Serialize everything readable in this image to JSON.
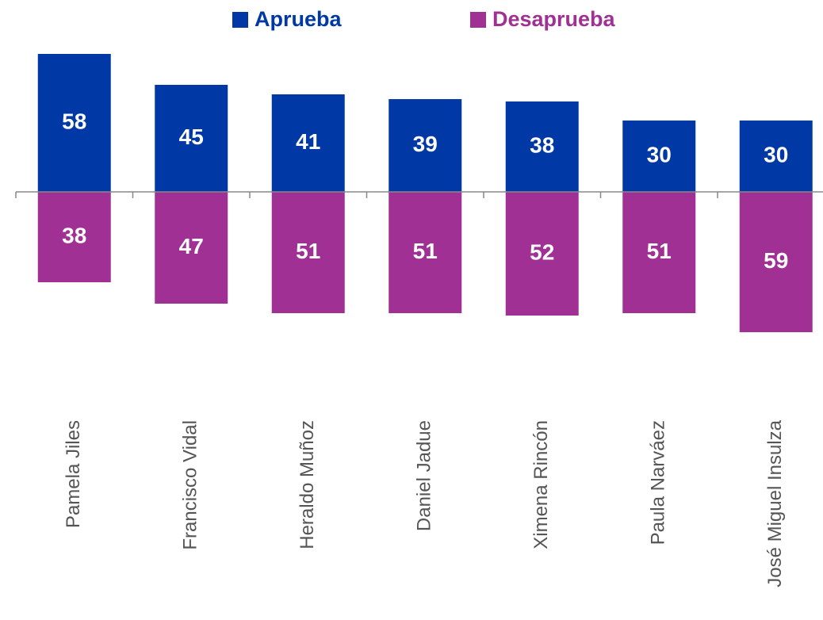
{
  "chart_data": {
    "type": "diverging_bar",
    "categories": [
      "Pamela Jiles",
      "Francisco Vidal",
      "Heraldo Muñoz",
      "Daniel Jadue",
      "Ximena Rincón",
      "Paula Narváez",
      "José Miguel Insulza"
    ],
    "series": [
      {
        "name": "Aprueba",
        "color": "#0039a6",
        "values": [
          58,
          45,
          41,
          39,
          38,
          30,
          30
        ]
      },
      {
        "name": "Desaprueba",
        "color": "#a03093",
        "values": [
          38,
          47,
          51,
          51,
          52,
          51,
          59
        ]
      }
    ],
    "legend": "top"
  }
}
